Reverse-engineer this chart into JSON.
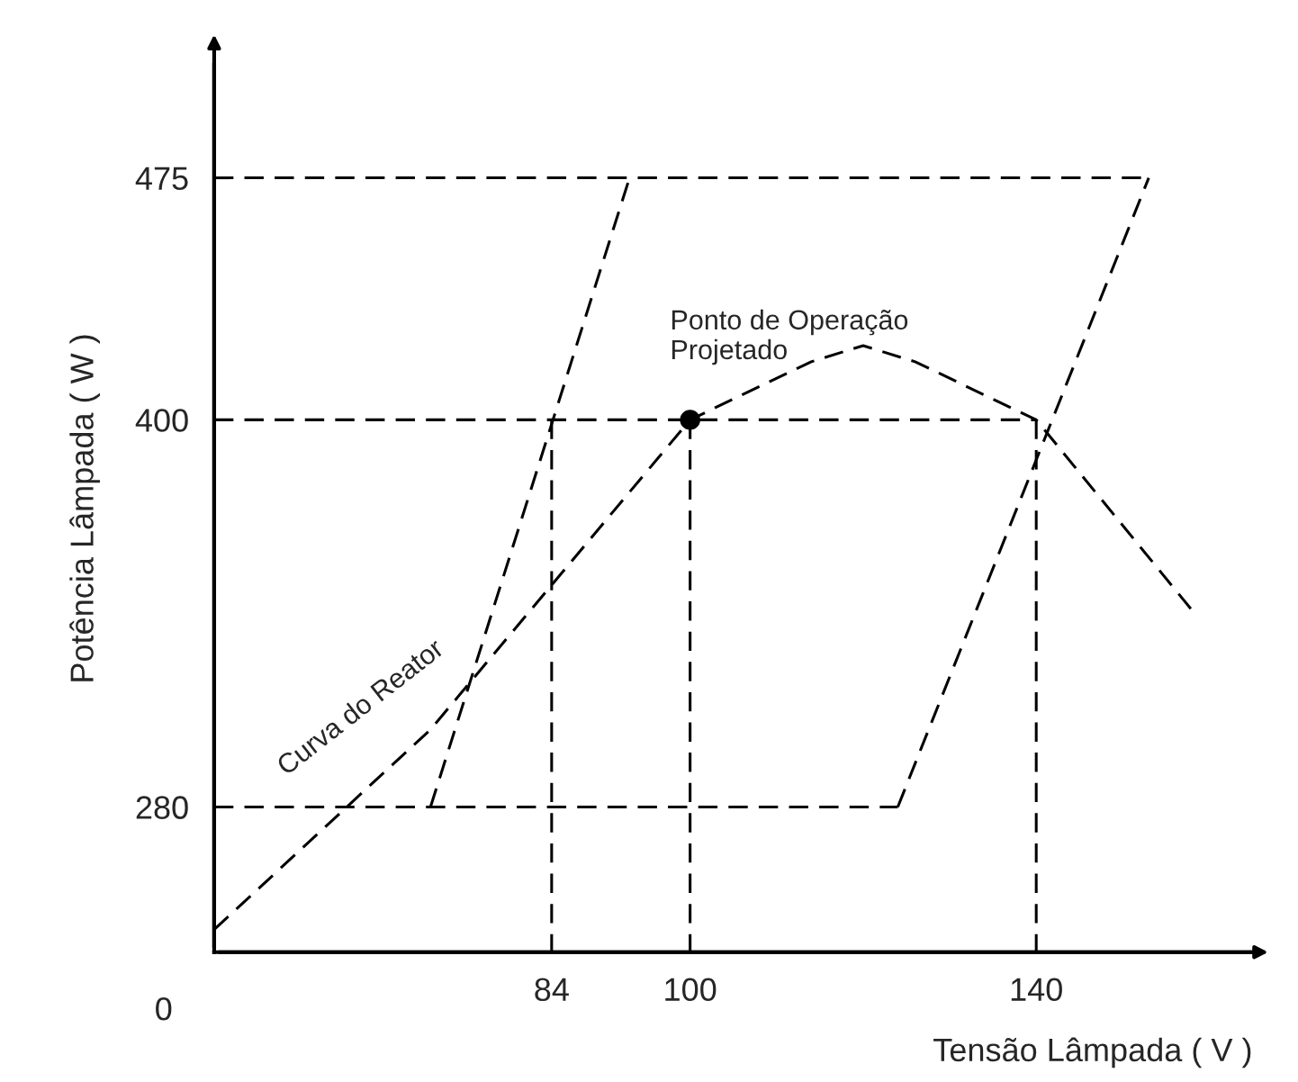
{
  "chart_data": {
    "type": "line",
    "xlabel": "Tensão Lâmpada ( V )",
    "ylabel": "Potência Lâmpada ( W )",
    "xlim": [
      45,
      165
    ],
    "ylim": [
      235,
      510
    ],
    "xticks": [
      84,
      100,
      140
    ],
    "yticks": [
      280,
      400,
      475
    ],
    "grid": false,
    "legend": false,
    "series": [
      {
        "color": "#000000",
        "line_style": "dashed",
        "marker": "none",
        "x": [
          45,
          70,
          100,
          114,
          120,
          126,
          140,
          158
        ],
        "values": [
          242,
          304,
          400,
          418,
          423,
          418,
          400,
          341
        ]
      },
      {
        "color": "#000000",
        "line_style": "dashed",
        "marker": "none",
        "x": [
          70,
          93
        ],
        "values": [
          280,
          475
        ]
      },
      {
        "color": "#000000",
        "line_style": "dashed",
        "marker": "none",
        "x": [
          124,
          153
        ],
        "values": [
          280,
          475
        ]
      },
      {
        "color": "#000000",
        "line_style": "dashed",
        "marker": "none",
        "x": [
          45,
          153
        ],
        "values": [
          475,
          475
        ]
      },
      {
        "color": "#000000",
        "line_style": "dashed",
        "marker": "none",
        "x": [
          45,
          140
        ],
        "values": [
          400,
          400
        ]
      },
      {
        "color": "#000000",
        "line_style": "dashed",
        "marker": "none",
        "x": [
          45,
          124
        ],
        "values": [
          280,
          280
        ]
      },
      {
        "color": "#000000",
        "line_style": "dashed",
        "marker": "none",
        "x": [
          84,
          84
        ],
        "values": [
          400,
          235
        ]
      },
      {
        "color": "#000000",
        "line_style": "dashed",
        "marker": "none",
        "x": [
          100,
          100
        ],
        "values": [
          400,
          235
        ]
      },
      {
        "color": "#000000",
        "line_style": "dashed",
        "marker": "none",
        "x": [
          140,
          140
        ],
        "values": [
          400,
          235
        ]
      },
      {
        "type": "scatter",
        "color": "#000000",
        "marker": "circle",
        "x": [
          100
        ],
        "values": [
          400
        ]
      }
    ],
    "annotations": [
      {
        "text": "Ponto de Operação\nProjetado",
        "x": 100,
        "y": 400
      },
      {
        "text": "Curva do Reator",
        "x": 62,
        "y": 285
      },
      "0"
    ]
  }
}
